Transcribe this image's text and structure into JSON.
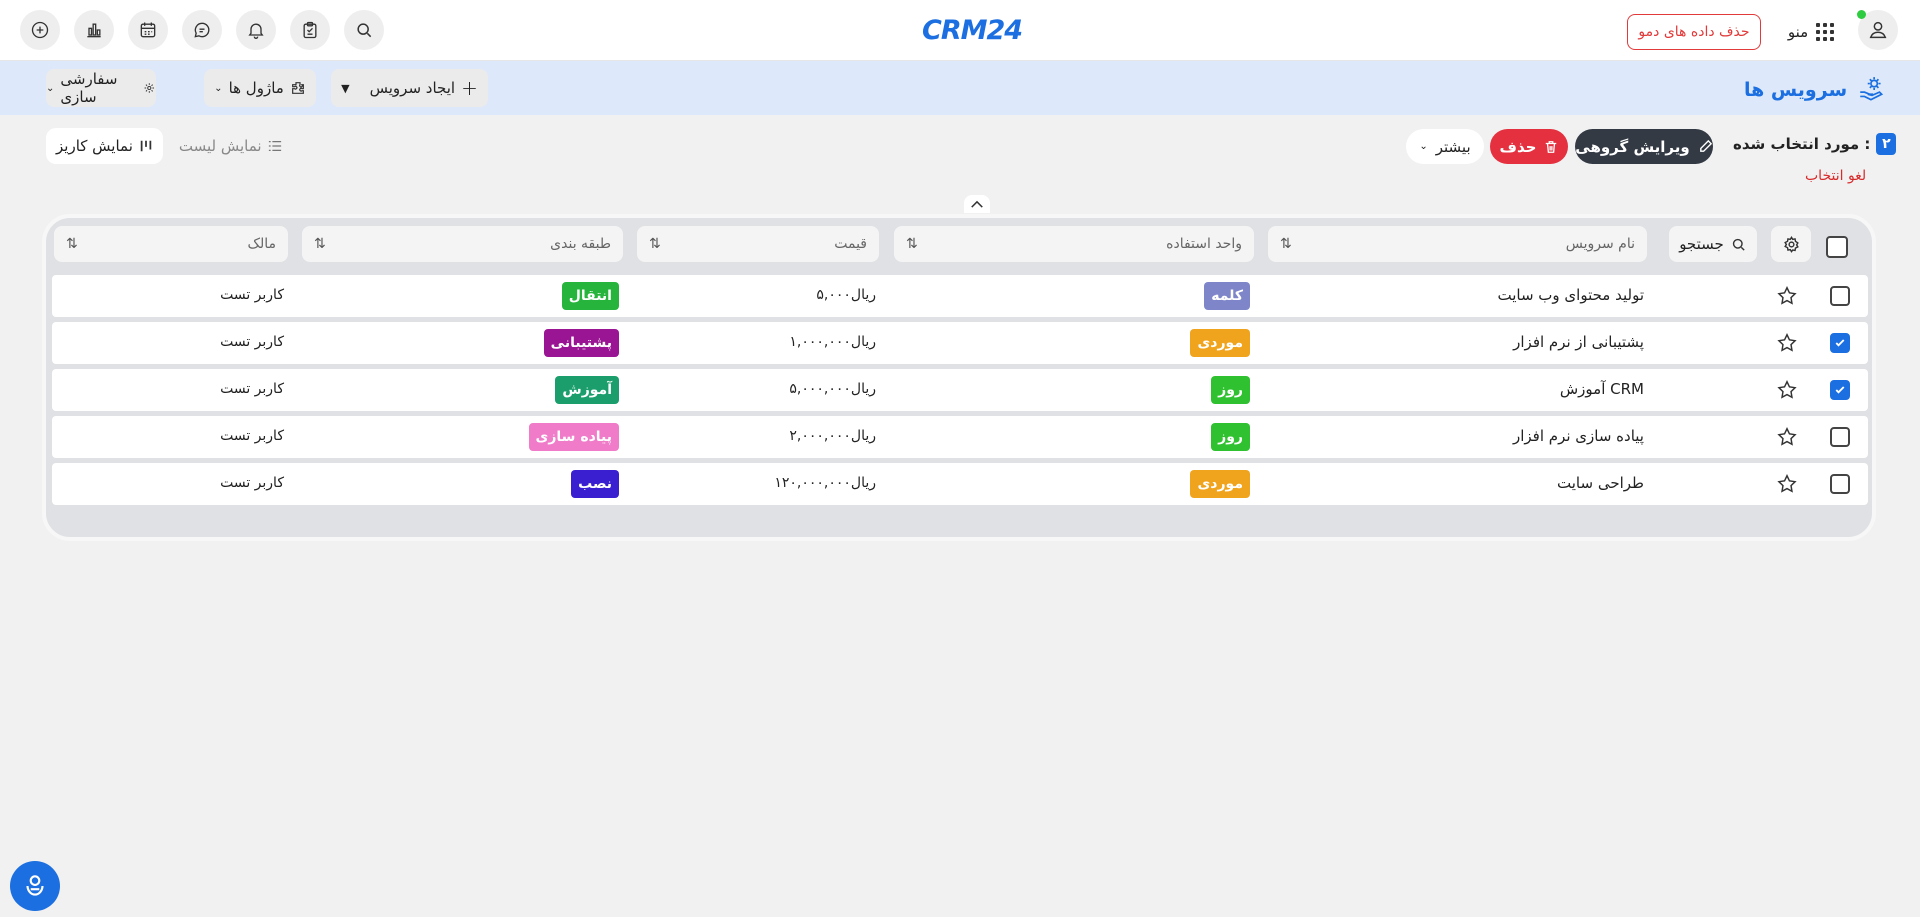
{
  "topbar": {
    "logo": "CRM24",
    "demo_button": "حذف داده های دمو",
    "menu_label": "منو"
  },
  "pagebar": {
    "title": "سرویس ها",
    "create_service": "ایجاد سرویس",
    "modules": "ماژول ها",
    "customize": "سفارشی سازی"
  },
  "actions": {
    "selected_count": "۲",
    "selected_label": "مورد انتخاب شده :",
    "bulk_edit": "ویرایش گروهی",
    "delete": "حذف",
    "more": "بیشتر",
    "deselect": "لغو انتخاب",
    "list_view": "نمایش لیست",
    "kanban_view": "نمایش کاریز"
  },
  "table": {
    "search_label": "جستجو",
    "columns": {
      "name": "نام سرویس",
      "unit": "واحد استفاده",
      "price": "قیمت",
      "category": "طبقه بندی",
      "owner": "مالک"
    },
    "rows": [
      {
        "name": "تولید محتوای وب سایت",
        "unit": "کلمه",
        "price": "۵,۰۰۰ریال",
        "category": "انتقال",
        "owner": "کاربر تست",
        "checked": false
      },
      {
        "name": "پشتیبانی از نرم افزار",
        "unit": "موردی",
        "price": "۱,۰۰۰,۰۰۰ریال",
        "category": "پشتیبانی",
        "owner": "کاربر تست",
        "checked": true
      },
      {
        "name": "آموزش CRM",
        "unit": "روز",
        "price": "۵,۰۰۰,۰۰۰ریال",
        "category": "آموزش",
        "owner": "کاربر تست",
        "checked": true
      },
      {
        "name": "پیاده سازی نرم افزار",
        "unit": "روز",
        "price": "۲,۰۰۰,۰۰۰ریال",
        "category": "پیاده سازی",
        "owner": "کاربر تست",
        "checked": false
      },
      {
        "name": "طراحی سایت",
        "unit": "موردی",
        "price": "۱۲۰,۰۰۰,۰۰۰ریال",
        "category": "نصب",
        "owner": "کاربر تست",
        "checked": false
      }
    ]
  },
  "colors": {
    "accent": "#1c6fe0",
    "unit_word": "#7e86c9",
    "unit_case": "#f0a31c",
    "unit_day": "#2fc12f",
    "cat_transfer": "#26b43c",
    "cat_support": "#9a1593",
    "cat_training": "#1b9e6c",
    "cat_implement": "#ef7bc9",
    "cat_install": "#3a1fd0"
  }
}
